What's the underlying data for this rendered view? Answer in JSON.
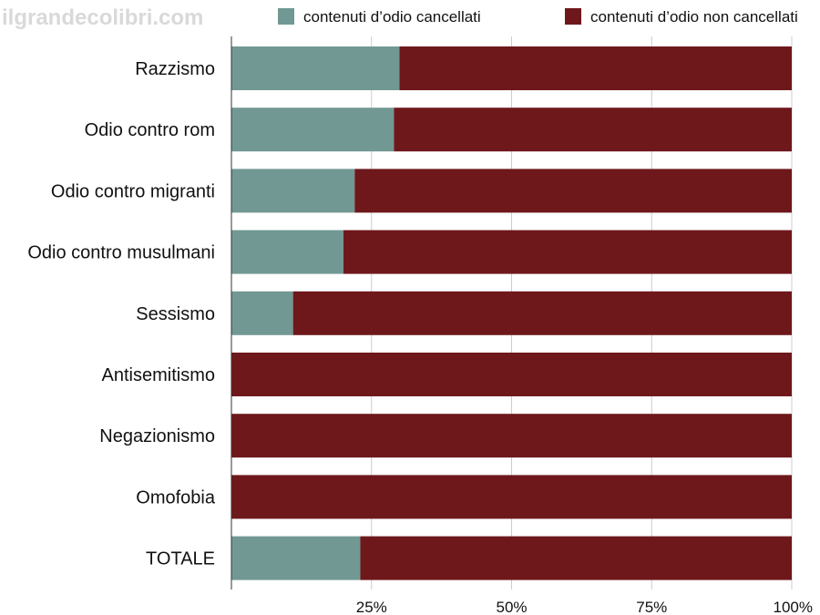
{
  "watermark": "ilgrandecolibri.com",
  "colors": {
    "deleted": "#729893",
    "not_deleted": "#6e181c",
    "grid": "#cccccc",
    "axis": "#333333"
  },
  "chart_data": {
    "type": "bar",
    "orientation": "horizontal",
    "stacked": true,
    "categories": [
      "Razzismo",
      "Odio contro rom",
      "Odio contro migranti",
      "Odio contro musulmani",
      "Sessismo",
      "Antisemitismo",
      "Negazionismo",
      "Omofobia",
      "TOTALE"
    ],
    "series": [
      {
        "name": "contenuti d’odio cancellati",
        "values": [
          30,
          29,
          22,
          20,
          11,
          0,
          0,
          0,
          23
        ]
      },
      {
        "name": "contenuti d’odio non cancellati",
        "values": [
          70,
          71,
          78,
          80,
          89,
          100,
          100,
          100,
          77
        ]
      }
    ],
    "xlim": [
      0,
      100
    ],
    "xticks": [
      25,
      50,
      75,
      100
    ],
    "xtick_labels": [
      "25%",
      "50%",
      "75%",
      "100%"
    ],
    "grid": true,
    "legend": "top"
  }
}
